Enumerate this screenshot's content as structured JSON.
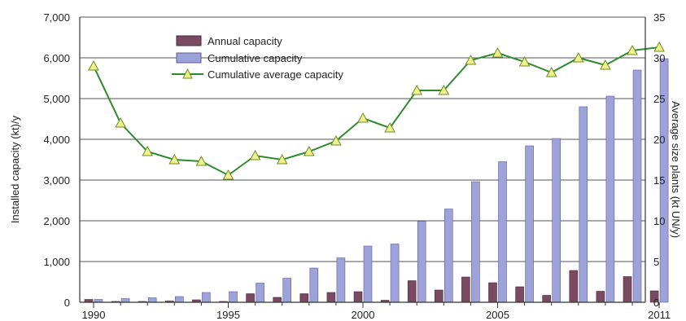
{
  "chart_data": {
    "type": "bar",
    "x": [
      1990,
      1991,
      1992,
      1993,
      1994,
      1995,
      1996,
      1997,
      1998,
      1999,
      2000,
      2001,
      2002,
      2003,
      2004,
      2005,
      2006,
      2007,
      2008,
      2009,
      2010,
      2011
    ],
    "x_tick_labels": [
      "1990",
      "1995",
      "2000",
      "2005",
      "2011"
    ],
    "x_ticks": [
      1990,
      1995,
      2000,
      2005,
      2011
    ],
    "series": [
      {
        "name": "Annual capacity",
        "type": "bar",
        "axis": "left",
        "color": "#7a4a62",
        "values": [
          70,
          20,
          20,
          30,
          60,
          20,
          210,
          120,
          210,
          240,
          260,
          50,
          530,
          300,
          620,
          480,
          380,
          170,
          780,
          270,
          630,
          280
        ]
      },
      {
        "name": "Cumulative capacity",
        "type": "bar",
        "axis": "left",
        "color": "#9da2d8",
        "values": [
          70,
          90,
          110,
          140,
          240,
          260,
          470,
          590,
          840,
          1090,
          1380,
          1430,
          1990,
          2290,
          2960,
          3450,
          3840,
          4020,
          4800,
          5060,
          5700,
          5980
        ]
      },
      {
        "name": "Cumulative average capacity",
        "type": "line",
        "axis": "right",
        "color": "#2e8b2e",
        "marker_color": "#f0f08c",
        "values": [
          29,
          22,
          18.5,
          17.5,
          17.3,
          15.6,
          18,
          17.5,
          18.5,
          19.8,
          22.6,
          21.4,
          26,
          26,
          29.7,
          30.6,
          29.5,
          28.2,
          30,
          29.1,
          30.9,
          31.3
        ]
      }
    ],
    "y_left": {
      "label": "Installed capacity (kt)/y",
      "range": [
        0,
        7000
      ],
      "tick_labels": [
        "0",
        "1,000",
        "2,000",
        "3,000",
        "4,000",
        "5,000",
        "6,000",
        "7,000"
      ]
    },
    "y_right": {
      "label": "Average size plants (kt UN/y)",
      "range": [
        0,
        35
      ],
      "tick_labels": [
        "0",
        "5",
        "10",
        "15",
        "20",
        "25",
        "30",
        "35"
      ]
    },
    "grid": "horizontal",
    "legend_placement": "top-left"
  }
}
